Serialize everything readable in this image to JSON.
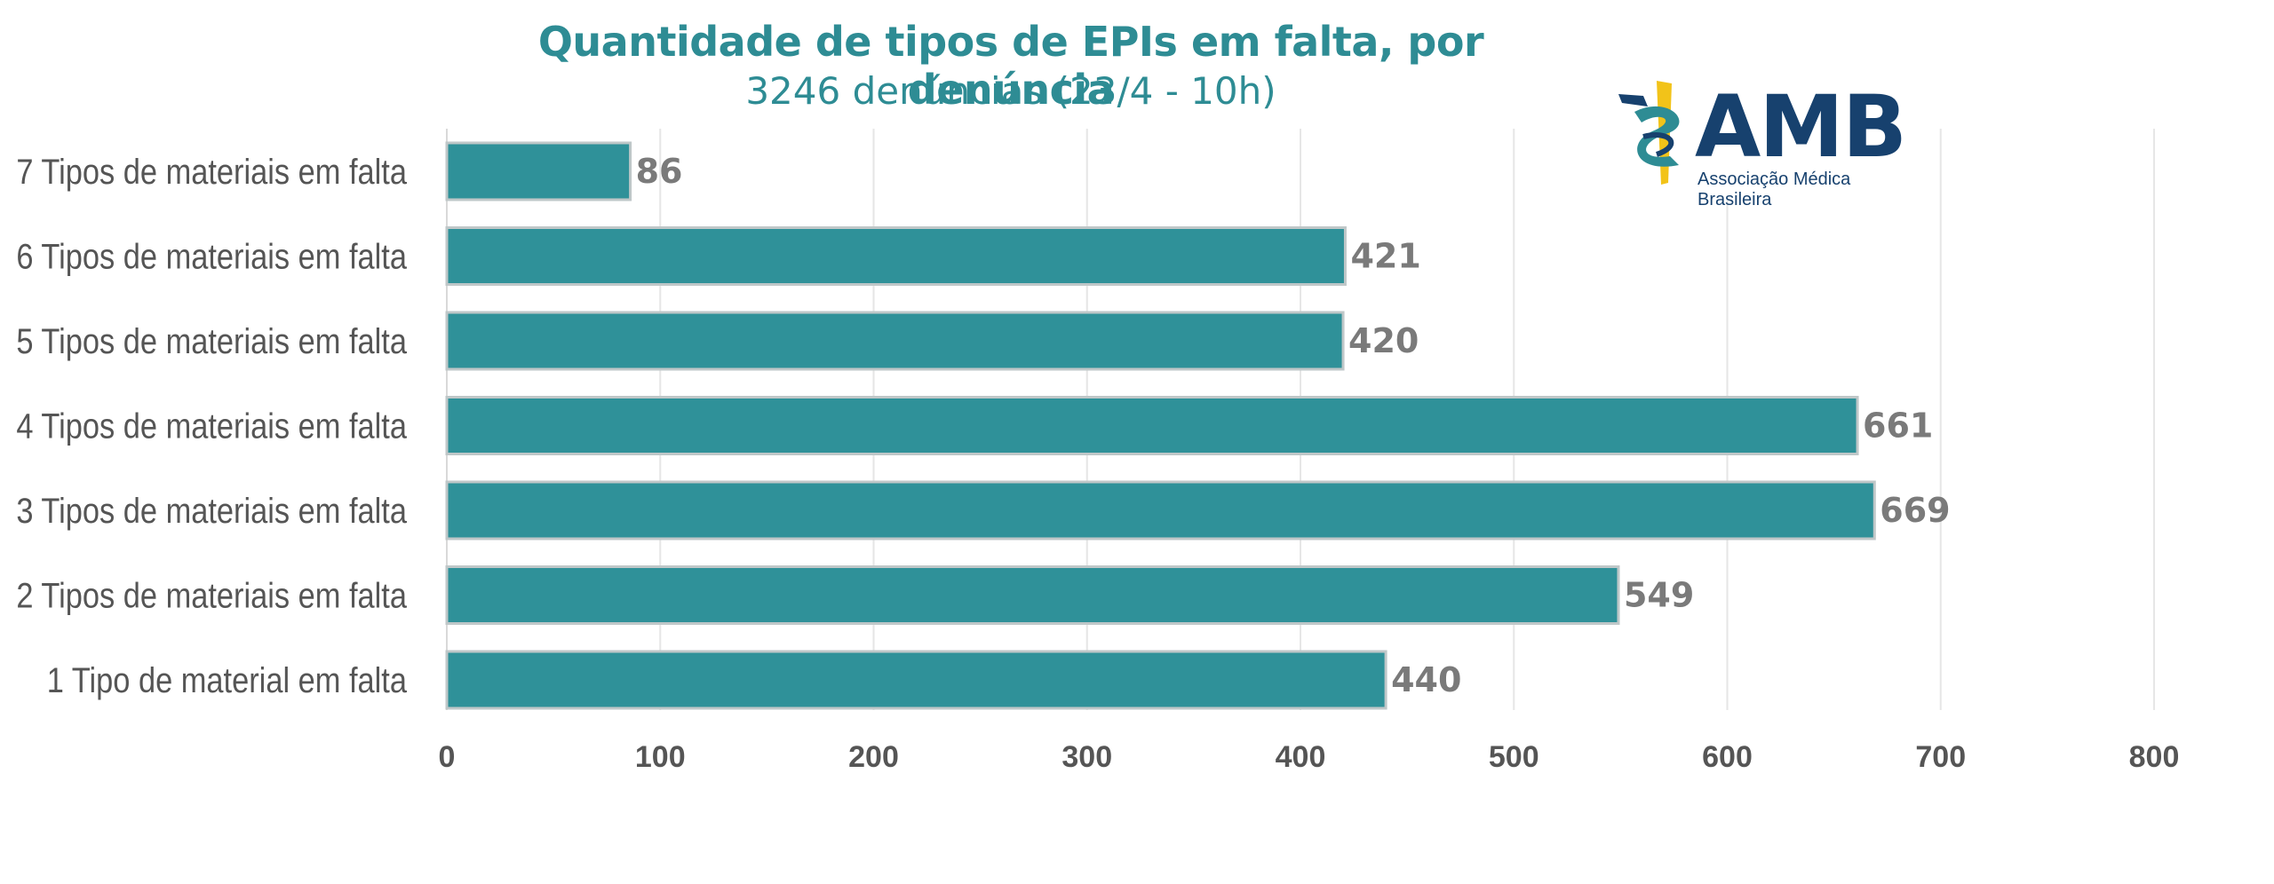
{
  "chart_data": {
    "type": "bar",
    "orientation": "horizontal",
    "title": "Quantidade de tipos de EPIs em falta, por denúncia",
    "subtitle": "3246 denúncias (23/4 - 10h)",
    "categories": [
      "7 Tipos de materiais em falta",
      "6 Tipos de materiais em falta",
      "5 Tipos de materiais em falta",
      "4 Tipos de materiais em falta",
      "3 Tipos de materiais em falta",
      "2 Tipos de materiais em falta",
      "1 Tipo de material em falta"
    ],
    "values": [
      86,
      421,
      420,
      661,
      669,
      549,
      440
    ],
    "xlim": [
      0,
      800
    ],
    "xticks": [
      0,
      100,
      200,
      300,
      400,
      500,
      600,
      700,
      800
    ],
    "grid": true,
    "data_labels": true
  },
  "colors": {
    "bar": "#2F9199",
    "bar_edge": "#BFC7C8",
    "title": "#2E8C94",
    "label": "#555555",
    "value": "#7A7A7A",
    "grid": "#E6E6E6"
  },
  "logo": {
    "text": "AMB",
    "subtext": "Associação Médica Brasileira",
    "icon": "caduceus-flag-icon"
  }
}
